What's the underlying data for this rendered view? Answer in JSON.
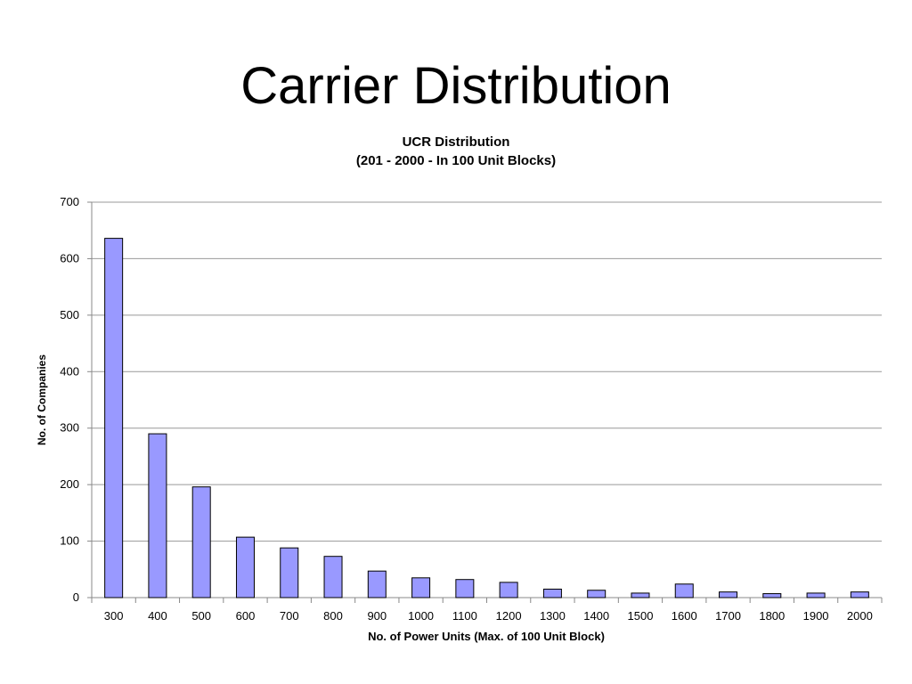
{
  "slide": {
    "title": "Carrier Distribution"
  },
  "colors": {
    "bar_fill": "#9999ff",
    "bar_stroke": "#000000",
    "grid": "#999999",
    "axis": "#888888"
  },
  "chart_data": {
    "type": "bar",
    "title": "UCR Distribution",
    "subtitle": "(201 - 2000 - In 100 Unit Blocks)",
    "xlabel": "No. of Power Units (Max. of 100 Unit Block)",
    "ylabel": "No. of Companies",
    "categories": [
      "300",
      "400",
      "500",
      "600",
      "700",
      "800",
      "900",
      "1000",
      "1100",
      "1200",
      "1300",
      "1400",
      "1500",
      "1600",
      "1700",
      "1800",
      "1900",
      "2000"
    ],
    "values": [
      636,
      290,
      196,
      107,
      88,
      73,
      47,
      35,
      32,
      27,
      15,
      13,
      8,
      24,
      10,
      7,
      8,
      10
    ],
    "ylim": [
      0,
      700
    ],
    "yticks": [
      "0",
      "100",
      "200",
      "300",
      "400",
      "500",
      "600",
      "700"
    ],
    "grid": true,
    "legend": "none"
  }
}
